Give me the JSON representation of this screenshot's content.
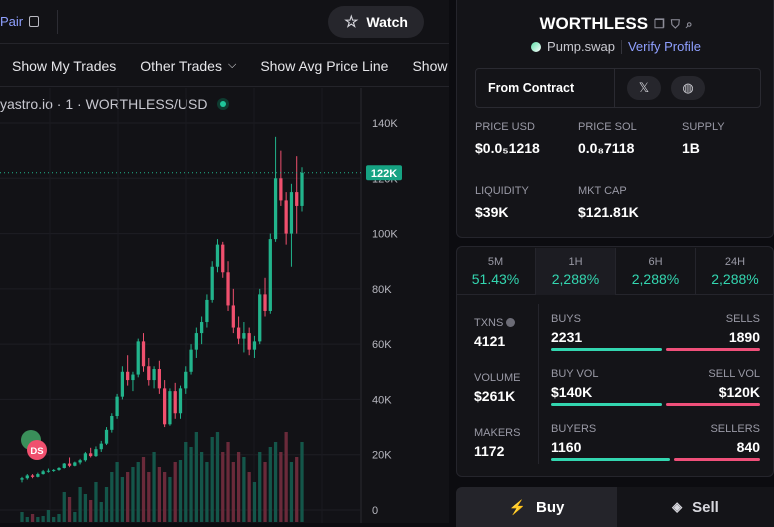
{
  "topbar": {
    "pair_label": "Pair",
    "watch_label": "Watch"
  },
  "toolbar": {
    "items": [
      "Show My Trades",
      "Other Trades",
      "Show Avg Price Line",
      "Show"
    ]
  },
  "chart": {
    "symbol": "yastro.io · 1 · WORTHLESS/USD",
    "y_ticks": [
      "140K",
      "120K",
      "100K",
      "80K",
      "60K",
      "40K",
      "20K",
      "0"
    ],
    "current_price_badge": "122K",
    "marker_ds": "DS"
  },
  "chart_data": {
    "type": "candlestick",
    "ylim": [
      0,
      140000
    ],
    "current_price": 122000,
    "candles": [
      [
        11000,
        12000,
        10000,
        11500,
        "up"
      ],
      [
        11500,
        13000,
        11000,
        12500,
        "up"
      ],
      [
        12500,
        13000,
        11500,
        12000,
        "down"
      ],
      [
        12000,
        13500,
        11800,
        13000,
        "up"
      ],
      [
        13000,
        14500,
        12800,
        14000,
        "up"
      ],
      [
        14000,
        15000,
        13500,
        14200,
        "up"
      ],
      [
        14200,
        14800,
        13800,
        14500,
        "up"
      ],
      [
        14500,
        15500,
        14200,
        15200,
        "up"
      ],
      [
        15200,
        17000,
        15000,
        16800,
        "up"
      ],
      [
        16800,
        19000,
        15500,
        16000,
        "down"
      ],
      [
        16000,
        17500,
        15800,
        17200,
        "up"
      ],
      [
        17200,
        18500,
        16500,
        18000,
        "up"
      ],
      [
        18000,
        21000,
        17500,
        20500,
        "up"
      ],
      [
        20500,
        22500,
        19000,
        19500,
        "down"
      ],
      [
        19500,
        23000,
        19200,
        22000,
        "up"
      ],
      [
        22000,
        25000,
        21000,
        24000,
        "up"
      ],
      [
        24000,
        30000,
        23500,
        29000,
        "up"
      ],
      [
        29000,
        35000,
        28000,
        34000,
        "up"
      ],
      [
        34000,
        42000,
        33000,
        41000,
        "up"
      ],
      [
        41000,
        52000,
        40000,
        50000,
        "up"
      ],
      [
        50000,
        56000,
        45000,
        47000,
        "down"
      ],
      [
        47000,
        50000,
        43000,
        49000,
        "up"
      ],
      [
        49000,
        62000,
        48000,
        61000,
        "up"
      ],
      [
        61000,
        64000,
        50000,
        52000,
        "down"
      ],
      [
        52000,
        55000,
        45000,
        47000,
        "down"
      ],
      [
        47000,
        52000,
        44000,
        51000,
        "up"
      ],
      [
        51000,
        54000,
        42000,
        44000,
        "down"
      ],
      [
        44000,
        47000,
        30000,
        31000,
        "down"
      ],
      [
        31000,
        44000,
        30500,
        43000,
        "up"
      ],
      [
        43000,
        46000,
        33000,
        35000,
        "down"
      ],
      [
        35000,
        45000,
        33000,
        44000,
        "up"
      ],
      [
        44000,
        52000,
        42000,
        50000,
        "up"
      ],
      [
        50000,
        60000,
        49000,
        58000,
        "up"
      ],
      [
        58000,
        66000,
        55000,
        64000,
        "up"
      ],
      [
        64000,
        70000,
        60000,
        68000,
        "up"
      ],
      [
        68000,
        78000,
        66000,
        76000,
        "up"
      ],
      [
        76000,
        90000,
        75000,
        88000,
        "up"
      ],
      [
        88000,
        98000,
        86000,
        96000,
        "up"
      ],
      [
        96000,
        97000,
        84000,
        86000,
        "down"
      ],
      [
        86000,
        90000,
        72000,
        74000,
        "down"
      ],
      [
        74000,
        80000,
        64000,
        66000,
        "down"
      ],
      [
        66000,
        70000,
        60000,
        62000,
        "down"
      ],
      [
        62000,
        68000,
        57000,
        64000,
        "up"
      ],
      [
        64000,
        66000,
        56000,
        58000,
        "down"
      ],
      [
        58000,
        63000,
        55000,
        61000,
        "up"
      ],
      [
        61000,
        80000,
        60000,
        78000,
        "up"
      ],
      [
        78000,
        84000,
        70000,
        72000,
        "down"
      ],
      [
        72000,
        100000,
        71000,
        98000,
        "up"
      ],
      [
        98000,
        135000,
        97000,
        120000,
        "up"
      ],
      [
        120000,
        130000,
        110000,
        112000,
        "down"
      ],
      [
        112000,
        115000,
        96000,
        100000,
        "down"
      ],
      [
        100000,
        118000,
        88000,
        115000,
        "up"
      ],
      [
        115000,
        128000,
        100000,
        110000,
        "down"
      ],
      [
        110000,
        124000,
        108000,
        122000,
        "up"
      ]
    ],
    "volumes": [
      0.1,
      0.05,
      0.08,
      0.05,
      0.06,
      0.12,
      0.05,
      0.08,
      0.3,
      0.25,
      0.1,
      0.35,
      0.28,
      0.22,
      0.4,
      0.2,
      0.35,
      0.5,
      0.6,
      0.45,
      0.5,
      0.55,
      0.6,
      0.65,
      0.5,
      0.7,
      0.55,
      0.5,
      0.45,
      0.6,
      0.62,
      0.8,
      0.75,
      0.9,
      0.7,
      0.6,
      0.85,
      0.9,
      0.7,
      0.8,
      0.6,
      0.7,
      0.65,
      0.5,
      0.4,
      0.7,
      0.6,
      0.75,
      0.8,
      0.7,
      0.9,
      0.6,
      0.65,
      0.8
    ]
  },
  "token": {
    "name": "WORTHLESS",
    "dex": "Pump.swap",
    "verify_label": "Verify Profile",
    "contract_label": "From Contract"
  },
  "stats": {
    "price_usd": {
      "label": "PRICE USD",
      "value": "$0.0₅1218"
    },
    "price_sol": {
      "label": "PRICE SOL",
      "value": "0.0₈7118"
    },
    "supply": {
      "label": "SUPPLY",
      "value": "1B"
    },
    "liquidity": {
      "label": "LIQUIDITY",
      "value": "$39K"
    },
    "mkt_cap": {
      "label": "MKT CAP",
      "value": "$121.81K"
    }
  },
  "timeframes": [
    {
      "label": "5M",
      "value": "51.43%"
    },
    {
      "label": "1H",
      "value": "2,288%"
    },
    {
      "label": "6H",
      "value": "2,288%"
    },
    {
      "label": "24H",
      "value": "2,288%"
    }
  ],
  "metrics": {
    "txns": {
      "label": "TXNS",
      "value": "4121"
    },
    "buys": {
      "label": "BUYS",
      "value": "2231"
    },
    "sells": {
      "label": "SELLS",
      "value": "1890"
    },
    "volume": {
      "label": "VOLUME",
      "value": "$261K"
    },
    "buy_vol": {
      "label": "BUY VOL",
      "value": "$140K"
    },
    "sell_vol": {
      "label": "SELL VOL",
      "value": "$120K"
    },
    "makers": {
      "label": "MAKERS",
      "value": "1172"
    },
    "buyers": {
      "label": "BUYERS",
      "value": "1160"
    },
    "sellers": {
      "label": "SELLERS",
      "value": "840"
    },
    "buy_ratio": 0.54,
    "buy_vol_ratio": 0.54,
    "buyer_ratio": 0.58
  },
  "actions": {
    "buy_label": "Buy",
    "sell_label": "Sell"
  },
  "colors": {
    "up": "#22b48c",
    "down": "#f0506e",
    "accent": "#8fa0ff",
    "green_text": "#33d6b0"
  }
}
